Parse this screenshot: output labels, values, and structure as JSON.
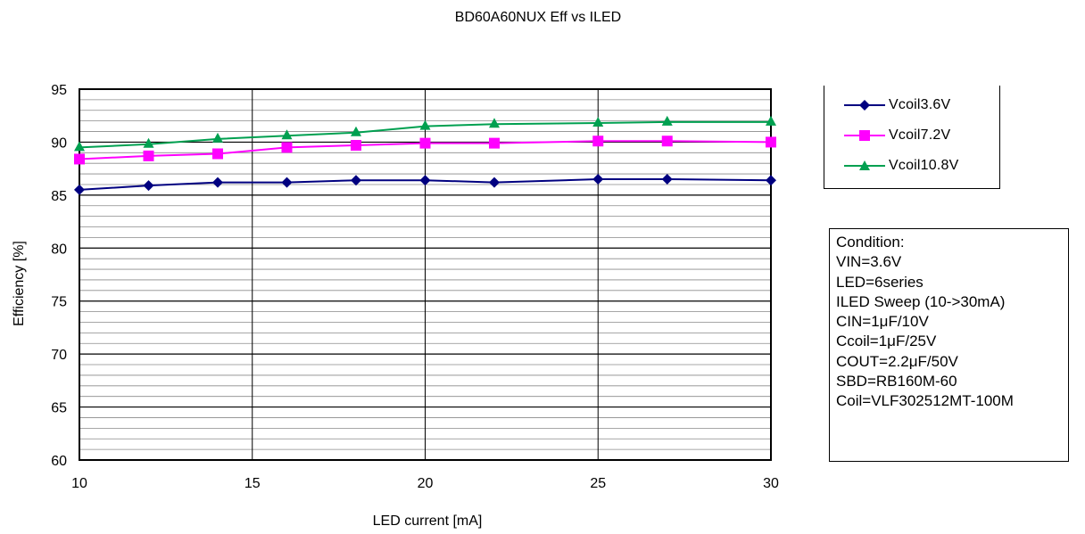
{
  "chart_data": {
    "type": "line",
    "title": "BD60A60NUX Eff vs ILED",
    "xlabel": "LED current [mA]",
    "ylabel": "Efficiency [%]",
    "xlim": [
      10,
      30
    ],
    "ylim": [
      60,
      95
    ],
    "x_ticks": [
      10,
      15,
      20,
      25,
      30
    ],
    "y_ticks": [
      60,
      65,
      70,
      75,
      80,
      85,
      90,
      95
    ],
    "y_minor_step": 1,
    "grid": true,
    "legend_position": "top-right",
    "series": [
      {
        "name": "Vcoil3.6V",
        "color": "#000080",
        "marker": "diamond",
        "x": [
          10,
          12,
          14,
          16,
          18,
          20,
          22,
          25,
          27,
          30
        ],
        "y": [
          85.5,
          85.9,
          86.2,
          86.2,
          86.4,
          86.4,
          86.2,
          86.5,
          86.5,
          86.4
        ]
      },
      {
        "name": "Vcoil7.2V",
        "color": "#ff00ff",
        "marker": "square",
        "x": [
          10,
          12,
          14,
          16,
          18,
          20,
          22,
          25,
          27,
          30
        ],
        "y": [
          88.4,
          88.7,
          88.9,
          89.5,
          89.7,
          89.9,
          89.9,
          90.1,
          90.1,
          90.0
        ]
      },
      {
        "name": "Vcoil10.8V",
        "color": "#00a050",
        "marker": "triangle",
        "x": [
          10,
          12,
          14,
          16,
          18,
          20,
          22,
          25,
          27,
          30
        ],
        "y": [
          89.5,
          89.8,
          90.3,
          90.6,
          90.9,
          91.5,
          91.7,
          91.8,
          91.9,
          91.9
        ]
      }
    ]
  },
  "condition": {
    "lines": [
      "Condition:",
      "VIN=3.6V",
      "LED=6series",
      "ILED Sweep (10->30mA)",
      "CIN=1μF/10V",
      "Ccoil=1μF/25V",
      "COUT=2.2μF/50V",
      "SBD=RB160M-60",
      "Coil=VLF302512MT-100M"
    ]
  }
}
